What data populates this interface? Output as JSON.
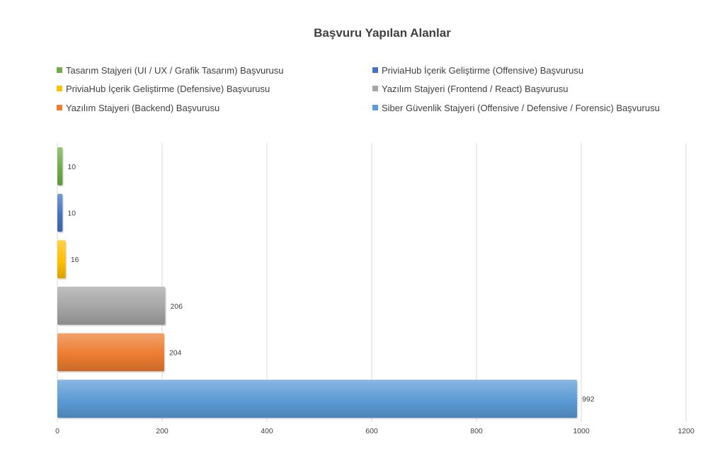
{
  "chart_data": {
    "type": "bar",
    "orientation": "horizontal",
    "title": "Başvuru Yapılan Alanlar",
    "xlim": [
      0,
      1200
    ],
    "x_ticks": [
      "0",
      "200",
      "400",
      "600",
      "800",
      "1000",
      "1200"
    ],
    "grid": true,
    "legend_position": "top",
    "series": [
      {
        "name": "Tasarım Stajyeri (UI / UX / Grafik Tasarım) Başvurusu",
        "value": 10,
        "label": "10",
        "color": "#70ad47"
      },
      {
        "name": "PriviaHub İçerik Geliştirme (Offensive) Başvurusu",
        "value": 10,
        "label": "10",
        "color": "#4472c4"
      },
      {
        "name": "PriviaHub İçerik Geliştirme (Defensive) Başvurusu",
        "value": 16,
        "label": "16",
        "color": "#ffc000"
      },
      {
        "name": "Yazılım Stajyeri (Frontend / React) Başvurusu",
        "value": 206,
        "label": "206",
        "color": "#a5a5a5"
      },
      {
        "name": "Yazılım Stajyeri (Backend) Başvurusu",
        "value": 204,
        "label": "204",
        "color": "#ed7d31"
      },
      {
        "name": "Siber Güvenlik Stajyeri (Offensive / Defensive / Forensic) Başvurusu",
        "value": 992,
        "label": "992",
        "color": "#5b9bd5"
      }
    ]
  }
}
